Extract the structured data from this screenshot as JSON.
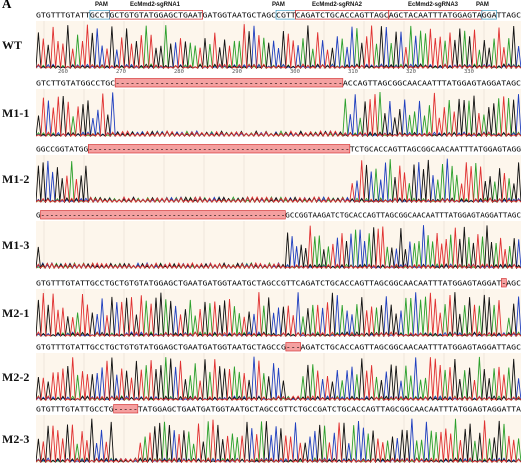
{
  "panel_letter": "A",
  "annotations": {
    "pam_left": "PAM",
    "grna1": "EcMmd2-sgRNA1",
    "pam_mid": "PAM",
    "grna2": "EcMmd2-sgRNA2",
    "grna3": "EcMmd2-sgRNA3",
    "pam_right": "PAM"
  },
  "ruler_ticks": [
    "260",
    "270",
    "280",
    "290",
    "300",
    "310",
    "320",
    "330"
  ],
  "rows": [
    {
      "label": "WT",
      "seq": "GTGTTTGTATTGCCTGCTGTGTATGGAGCTGAATGATGGTAATGCTAGCCGTTCAGATCTGCACCAGTTAGCAGCTACAATTTATGGAGTAGGATTAGC"
    },
    {
      "label": "M1-1",
      "seq": "GTCTTGTATGGCCTGC----------------------------------------------ACCAGTTAGCGGCAACAATTTATGGAGTAGGATAGC"
    },
    {
      "label": "M1-2",
      "seq": "GGCCGGTATGG-------------------------------------------------------TCTGCACCAGTTAGCGGCAACAATTTATGGAGTAGG"
    },
    {
      "label": "M1-3",
      "seq": "G------------------------------------------------------GCCGGTAAGATCTGCACCAGTTAGCGGCAACAATTTATGGAGTAGGATTAGC"
    },
    {
      "label": "M2-1",
      "seq": "GTGTTTGTATTGCCTGCTGTGTATGGAGCTGAATGATGGTAATGCTAGCCGTTCAGATCTGCACCAGTTAGCGGCAACAATTTATGGAGTAGGAT-AGC"
    },
    {
      "label": "M2-2",
      "seq": "GTGTTTGTATTGCCTGCTGTGTATGGAGCTGAATGATGGTAATGCTAGCCG---AGATCTGCACCAGTTAGCGGCAACAATTTATGGAGTAGGATTAGC"
    },
    {
      "label": "M2-3",
      "seq": "GTGTTTGTATTGCCTG-----TATGGAGCTGAATGATGGTAATGCTAGCCGTTCTGCCGATCTGCACCAGTTAGCGGCAACAATTTATGGAGTAGGATTA"
    }
  ],
  "colors": {
    "A": "#2ca02c",
    "C": "#1f3fbf",
    "G": "#111111",
    "T": "#e03030",
    "highlight": "#f4a0a0",
    "frame": "#d02020",
    "pam_box": "#3a9abf"
  }
}
